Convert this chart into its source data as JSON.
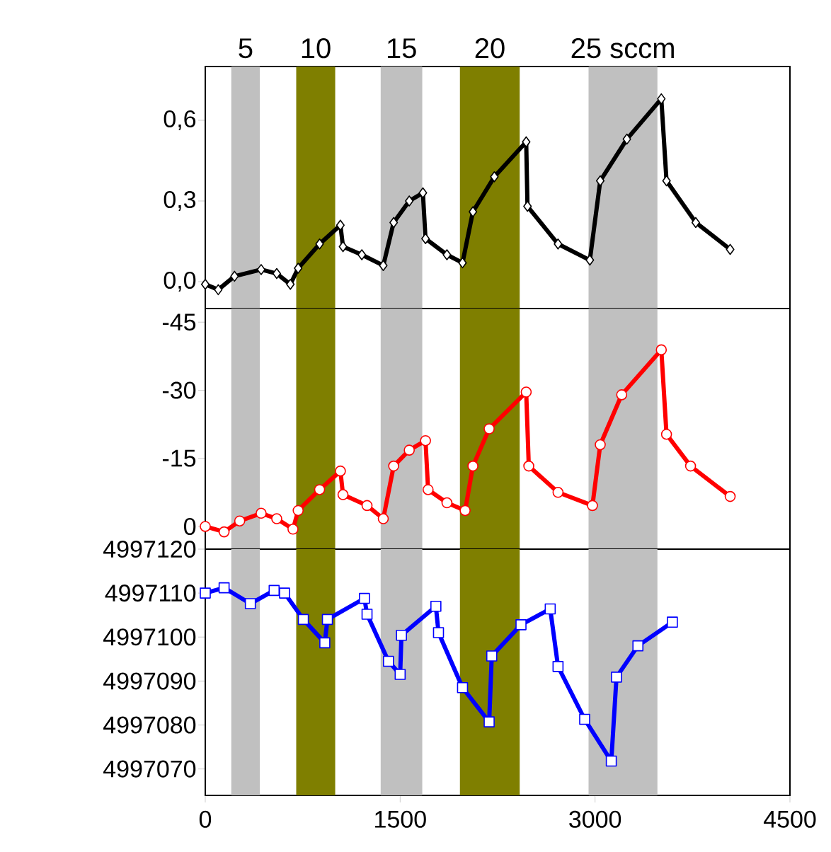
{
  "chart_data": [
    {
      "type": "line",
      "marker": "diamond",
      "line_style": "solid",
      "tick_labels": "y",
      "xlim": [
        0,
        4500
      ],
      "xticks": [
        0,
        1500,
        3000,
        4500
      ],
      "ylim": [
        -0.1,
        0.8
      ],
      "yticks": [
        {
          "value": 0,
          "label": "0,0"
        },
        {
          "value": 0.3,
          "label": "0,3"
        },
        {
          "value": 0.6,
          "label": "0,6"
        }
      ],
      "x": [
        0,
        100,
        225,
        430,
        550,
        655,
        715,
        880,
        1040,
        1060,
        1205,
        1370,
        1450,
        1570,
        1675,
        1695,
        1860,
        1980,
        2060,
        2225,
        2470,
        2480,
        2715,
        2960,
        3040,
        3245,
        3510,
        3550,
        3775,
        4040
      ],
      "series": [
        {
          "color": "#000000",
          "values": [
            -0.01,
            -0.03,
            0.02,
            0.045,
            0.03,
            -0.01,
            0.05,
            0.14,
            0.21,
            0.13,
            0.1,
            0.06,
            0.22,
            0.3,
            0.33,
            0.16,
            0.1,
            0.07,
            0.26,
            0.39,
            0.52,
            0.28,
            0.14,
            0.08,
            0.375,
            0.53,
            0.68,
            0.375,
            0.22,
            0.12
          ]
        }
      ],
      "bands": [
        {
          "axis": "x",
          "from": 200,
          "to": 420,
          "label": "5",
          "color": "#c0c0c0"
        },
        {
          "axis": "x",
          "from": 700,
          "to": 1000,
          "label": "10",
          "color": "#7f7f00"
        },
        {
          "axis": "x",
          "from": 1350,
          "to": 1670,
          "label": "15",
          "color": "#c0c0c0"
        },
        {
          "axis": "x",
          "from": 1960,
          "to": 2420,
          "label": "20",
          "color": "#7f7f00"
        },
        {
          "axis": "x",
          "from": 2950,
          "to": 3480,
          "label": "25 sccm",
          "color": "#c0c0c0"
        }
      ]
    },
    {
      "type": "line",
      "marker": "circle",
      "line_style": "solid",
      "tick_labels": "y",
      "xlim": [
        0,
        4500
      ],
      "xticks": [
        0,
        1500,
        3000,
        4500
      ],
      "ylim": [
        5,
        -48
      ],
      "yticks": [
        0,
        -15,
        -30,
        -45
      ],
      "x": [
        0,
        145,
        265,
        430,
        550,
        675,
        715,
        880,
        1040,
        1060,
        1245,
        1370,
        1450,
        1570,
        1695,
        1715,
        1860,
        2000,
        2060,
        2185,
        2470,
        2490,
        2715,
        2980,
        3040,
        3205,
        3510,
        3550,
        3735,
        4040
      ],
      "series": [
        {
          "color": "#ff0000",
          "values": [
            0,
            1.2,
            -1.2,
            -2.9,
            -1.7,
            0.6,
            -3.5,
            -8.1,
            -12.2,
            -7.0,
            -4.6,
            -1.7,
            -13.3,
            -16.8,
            -18.9,
            -8.1,
            -5.2,
            -3.5,
            -13.3,
            -21.5,
            -29.6,
            -13.3,
            -7.5,
            -4.6,
            -18.0,
            -29.0,
            -38.9,
            -20.3,
            -13.3,
            -6.6
          ]
        }
      ],
      "bands": [
        {
          "axis": "x",
          "from": 200,
          "to": 420,
          "color": "#c0c0c0"
        },
        {
          "axis": "x",
          "from": 700,
          "to": 1000,
          "color": "#7f7f00"
        },
        {
          "axis": "x",
          "from": 1350,
          "to": 1670,
          "color": "#c0c0c0"
        },
        {
          "axis": "x",
          "from": 1960,
          "to": 2420,
          "color": "#7f7f00"
        },
        {
          "axis": "x",
          "from": 2950,
          "to": 3480,
          "color": "#c0c0c0"
        }
      ]
    },
    {
      "type": "line",
      "marker": "square",
      "line_style": "solid",
      "xlim": [
        0,
        4500
      ],
      "xticks": [
        0,
        1500,
        3000,
        4500
      ],
      "ylim": [
        4997064,
        4997120
      ],
      "yticks": [
        4997070,
        4997080,
        4997090,
        4997100,
        4997110,
        4997120
      ],
      "x": [
        0,
        145,
        347,
        530,
        610,
        755,
        920,
        940,
        1225,
        1245,
        1410,
        1500,
        1510,
        1775,
        1795,
        1980,
        2185,
        2205,
        2430,
        2655,
        2715,
        2920,
        3125,
        3165,
        3330,
        3595
      ],
      "series": [
        {
          "color": "#0000ff",
          "values": [
            4997110,
            4997111.2,
            4997107.6,
            4997110.6,
            4997110,
            4997104,
            4997098.7,
            4997104,
            4997108.8,
            4997105.2,
            4997094.5,
            4997091.5,
            4997100.4,
            4997107,
            4997101,
            4997088.5,
            4997080.7,
            4997095.7,
            4997102.8,
            4997106.4,
            4997093.3,
            4997081.3,
            4997071.8,
            4997090.9,
            4997098,
            4997103.4
          ]
        }
      ],
      "bands": [
        {
          "axis": "x",
          "from": 200,
          "to": 420,
          "color": "#c0c0c0"
        },
        {
          "axis": "x",
          "from": 700,
          "to": 1000,
          "color": "#7f7f00"
        },
        {
          "axis": "x",
          "from": 1350,
          "to": 1670,
          "color": "#c0c0c0"
        },
        {
          "axis": "x",
          "from": 1960,
          "to": 2420,
          "color": "#7f7f00"
        },
        {
          "axis": "x",
          "from": 2950,
          "to": 3480,
          "color": "#c0c0c0"
        }
      ]
    }
  ]
}
